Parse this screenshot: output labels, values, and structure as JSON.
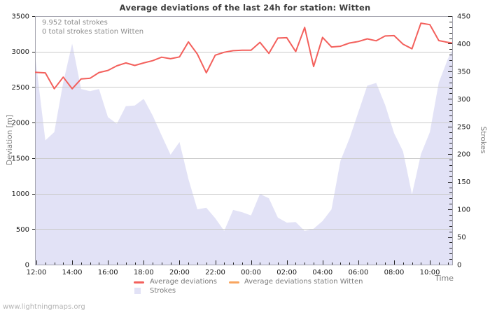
{
  "header": {
    "title": "Average deviations of the last 24h for station: Witten"
  },
  "annotations": {
    "line1": "9.952 total strokes",
    "line2": "0 total strokes station Witten"
  },
  "footer": {
    "site": "www.lightningmaps.org"
  },
  "legend": {
    "items": [
      {
        "label": "Average deviations",
        "swatch": "line",
        "color": "#f3605c"
      },
      {
        "label": "Average deviations station Witten",
        "swatch": "line",
        "color": "#f8a55f"
      },
      {
        "label": "Strokes",
        "swatch": "area",
        "color": "#e2e2f6"
      }
    ]
  },
  "chart_data": {
    "type": "line+area",
    "title": "Average deviations of the last 24h for station: Witten",
    "grid": true,
    "legend_position": "bottom",
    "x_axis": {
      "label": "Time",
      "tick_labels": [
        "12:00",
        "14:00",
        "16:00",
        "18:00",
        "20:00",
        "22:00",
        "00:00",
        "02:00",
        "04:00",
        "06:00",
        "08:00",
        "10:00"
      ],
      "major_step_hours": 2,
      "minor_step_hours": 0.5,
      "range_hours": [
        0,
        23.3
      ]
    },
    "left_axis": {
      "label": "Deviation [m]",
      "min": 0,
      "max": 3500,
      "step": 500
    },
    "right_axis": {
      "label": "Strokes",
      "min": 0,
      "max": 450,
      "step": 50,
      "minor_step": 10
    },
    "x_hours": [
      0,
      0.5,
      1,
      1.5,
      2,
      2.5,
      3,
      3.5,
      4,
      4.5,
      5,
      5.5,
      6,
      6.5,
      7,
      7.5,
      8,
      8.5,
      9,
      9.5,
      10,
      10.5,
      11,
      11.5,
      12,
      12.5,
      13,
      13.5,
      14,
      14.5,
      15,
      15.5,
      16,
      16.5,
      17,
      17.5,
      18,
      18.5,
      19,
      19.5,
      20,
      20.5,
      21,
      21.5,
      22,
      22.5,
      23,
      23.3
    ],
    "series": [
      {
        "name": "Average deviations",
        "type": "line",
        "axis": "left",
        "color": "#f3605c",
        "values": [
          2708,
          2700,
          2477,
          2640,
          2477,
          2615,
          2625,
          2705,
          2735,
          2800,
          2840,
          2805,
          2840,
          2872,
          2921,
          2900,
          2925,
          3136,
          2965,
          2701,
          2950,
          2990,
          3013,
          3019,
          3019,
          3130,
          2975,
          3190,
          3195,
          3000,
          3340,
          2790,
          3200,
          3065,
          3075,
          3120,
          3142,
          3180,
          3152,
          3220,
          3225,
          3105,
          3040,
          3400,
          3380,
          3155,
          3130,
          3120
        ]
      },
      {
        "name": "Average deviations station Witten",
        "type": "line",
        "axis": "left",
        "color": "#f8a55f",
        "values": []
      },
      {
        "name": "Strokes",
        "type": "area",
        "axis": "right",
        "color": "#e2e2f6",
        "values": [
          380,
          225,
          240,
          330,
          400,
          318,
          314,
          318,
          267,
          255,
          287,
          288,
          300,
          270,
          234,
          199,
          222,
          155,
          100,
          103,
          84,
          61,
          99,
          95,
          89,
          128,
          120,
          85,
          76,
          77,
          61,
          65,
          79,
          100,
          188,
          228,
          276,
          324,
          329,
          289,
          238,
          205,
          127,
          200,
          240,
          330,
          372,
          388
        ]
      }
    ]
  }
}
